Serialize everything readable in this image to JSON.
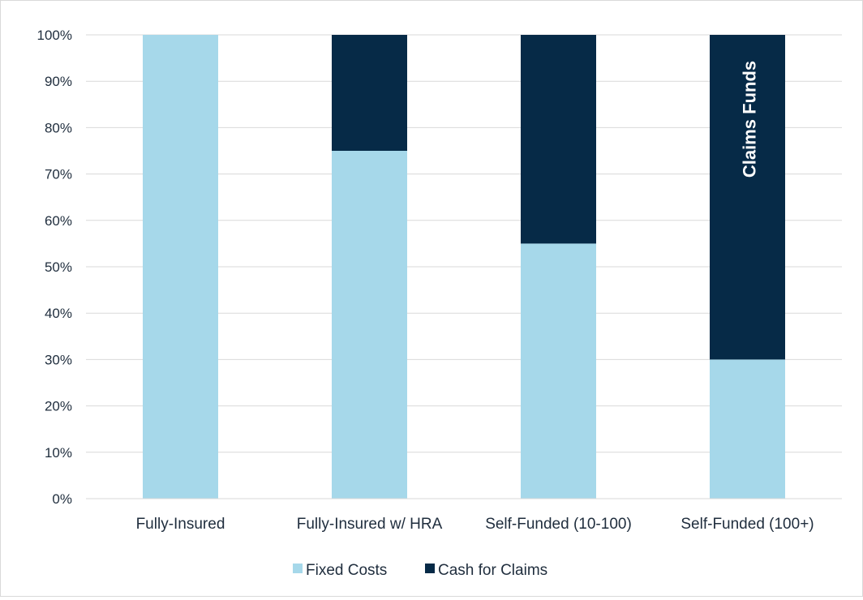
{
  "chart_data": {
    "type": "bar",
    "stacked": true,
    "categories": [
      "Fully-Insured",
      "Fully-Insured w/ HRA",
      "Self-Funded (10-100)",
      "Self-Funded (100+)"
    ],
    "series": [
      {
        "name": "Fixed Costs",
        "values": [
          100,
          75,
          55,
          30
        ],
        "color": "#a6d8ea"
      },
      {
        "name": "Cash for Claims",
        "values": [
          0,
          25,
          45,
          70
        ],
        "color": "#062a47"
      }
    ],
    "y_ticks": [
      "0%",
      "10%",
      "20%",
      "30%",
      "40%",
      "50%",
      "60%",
      "70%",
      "80%",
      "90%",
      "100%"
    ],
    "ylim": [
      0,
      100
    ],
    "grid": true,
    "legend_position": "bottom",
    "annotation": {
      "text": "Claims Funds",
      "category_index": 3,
      "series_index": 1,
      "orientation": "vertical"
    }
  }
}
